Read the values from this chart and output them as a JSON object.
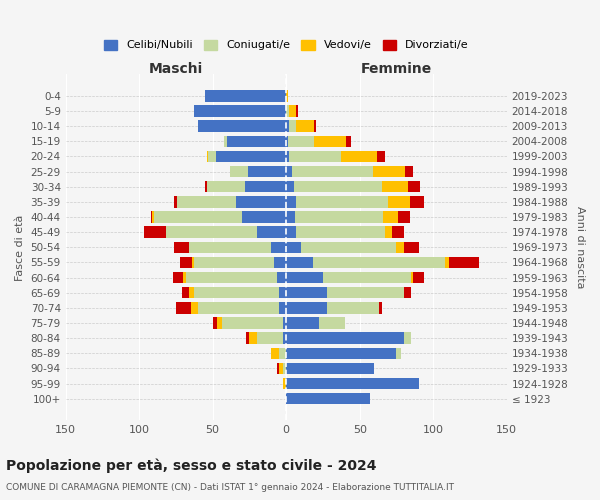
{
  "age_groups": [
    "100+",
    "95-99",
    "90-94",
    "85-89",
    "80-84",
    "75-79",
    "70-74",
    "65-69",
    "60-64",
    "55-59",
    "50-54",
    "45-49",
    "40-44",
    "35-39",
    "30-34",
    "25-29",
    "20-24",
    "15-19",
    "10-14",
    "5-9",
    "0-4"
  ],
  "birth_years": [
    "≤ 1923",
    "1924-1928",
    "1929-1933",
    "1934-1938",
    "1939-1943",
    "1944-1948",
    "1949-1953",
    "1954-1958",
    "1959-1963",
    "1964-1968",
    "1969-1973",
    "1974-1978",
    "1979-1983",
    "1984-1988",
    "1989-1993",
    "1994-1998",
    "1999-2003",
    "2004-2008",
    "2009-2013",
    "2014-2018",
    "2019-2023"
  ],
  "colors": {
    "celibi": "#4472c4",
    "coniugati": "#c5d9a0",
    "vedovi": "#ffc000",
    "divorziati": "#cc0000"
  },
  "males_celibi": [
    0,
    0,
    0,
    0,
    2,
    2,
    5,
    5,
    6,
    8,
    10,
    20,
    30,
    34,
    28,
    26,
    48,
    40,
    60,
    63,
    55
  ],
  "males_coniugati": [
    0,
    0,
    2,
    5,
    18,
    42,
    55,
    58,
    62,
    55,
    56,
    62,
    60,
    40,
    26,
    12,
    5,
    2,
    0,
    0,
    0
  ],
  "males_vedovi": [
    0,
    2,
    3,
    5,
    5,
    3,
    5,
    3,
    2,
    1,
    0,
    0,
    1,
    0,
    0,
    0,
    1,
    0,
    0,
    0,
    0
  ],
  "males_divorziati": [
    0,
    0,
    1,
    0,
    2,
    3,
    10,
    5,
    7,
    8,
    10,
    15,
    1,
    2,
    1,
    0,
    0,
    0,
    0,
    0,
    0
  ],
  "females_celibi": [
    57,
    90,
    60,
    75,
    80,
    22,
    28,
    28,
    25,
    18,
    10,
    7,
    6,
    7,
    5,
    4,
    2,
    1,
    2,
    0,
    0
  ],
  "females_coniugati": [
    0,
    0,
    0,
    3,
    5,
    18,
    35,
    52,
    60,
    90,
    65,
    60,
    60,
    62,
    60,
    55,
    35,
    18,
    5,
    2,
    0
  ],
  "females_vedovi": [
    0,
    0,
    0,
    0,
    0,
    0,
    0,
    0,
    1,
    3,
    5,
    5,
    10,
    15,
    18,
    22,
    25,
    22,
    12,
    5,
    1
  ],
  "females_divorziati": [
    0,
    0,
    0,
    0,
    0,
    0,
    2,
    5,
    8,
    20,
    10,
    8,
    8,
    10,
    8,
    5,
    5,
    3,
    1,
    1,
    0
  ],
  "title_main": "Popolazione per età, sesso e stato civile - 2024",
  "title_sub": "COMUNE DI CARAMAGNA PIEMONTE (CN) - Dati ISTAT 1° gennaio 2024 - Elaborazione TUTTITALIA.IT",
  "xlabel_left": "Maschi",
  "xlabel_right": "Femmine",
  "ylabel_left": "Fasce di età",
  "ylabel_right": "Anni di nascita",
  "xlim": 150,
  "legend_labels": [
    "Celibi/Nubili",
    "Coniugati/e",
    "Vedovi/e",
    "Divorziati/e"
  ],
  "bg_color": "#f5f5f5"
}
